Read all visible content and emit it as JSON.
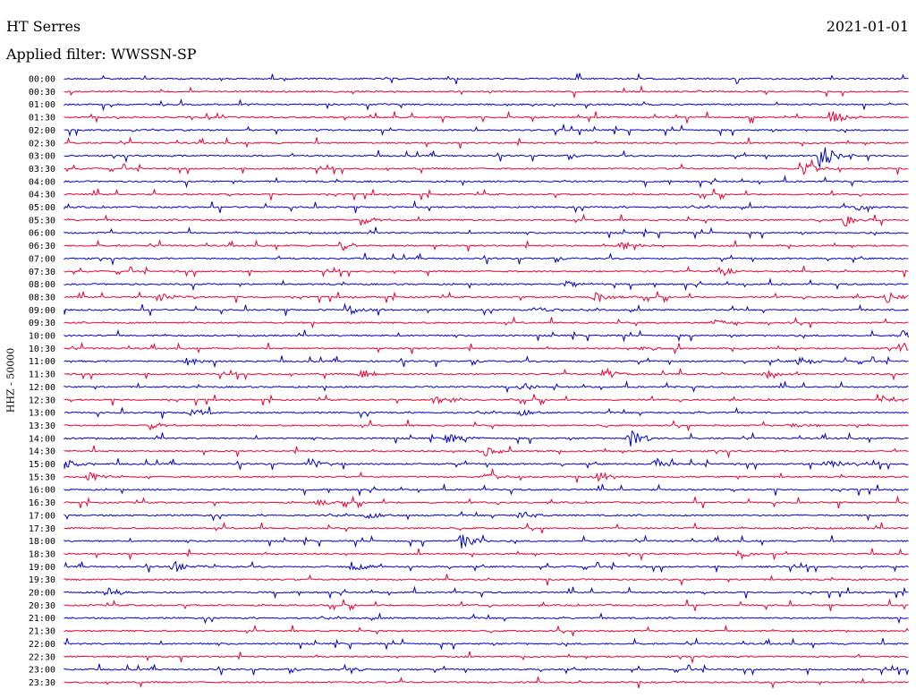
{
  "header": {
    "station": "HT Serres",
    "date": "2021-01-01",
    "filter": "Applied filter: WWSSN-SP"
  },
  "chart_data": {
    "type": "line",
    "title": "HT Serres",
    "subtitle": "Applied filter: WWSSN-SP",
    "ylabel": "HHZ - 50000",
    "xlabel": "",
    "colors": [
      "#0000cc",
      "#ee0033"
    ],
    "grid": false,
    "legend": "none",
    "rows": [
      "00:00",
      "00:30",
      "01:00",
      "01:30",
      "02:00",
      "02:30",
      "03:00",
      "03:30",
      "04:00",
      "04:30",
      "05:00",
      "05:30",
      "06:00",
      "06:30",
      "07:00",
      "07:30",
      "08:00",
      "08:30",
      "09:00",
      "09:30",
      "10:00",
      "10:30",
      "11:00",
      "11:30",
      "12:00",
      "12:30",
      "13:00",
      "13:30",
      "14:00",
      "14:30",
      "15:00",
      "15:30",
      "16:00",
      "16:30",
      "17:00",
      "17:30",
      "18:00",
      "18:30",
      "19:00",
      "19:30",
      "20:00",
      "20:30",
      "21:00",
      "21:30",
      "22:00",
      "22:30",
      "23:00",
      "23:30"
    ],
    "events": [
      {
        "row": "03:00",
        "t": 0.895,
        "amp": 1.0
      },
      {
        "row": "03:30",
        "t": 0.875,
        "amp": 0.6
      },
      {
        "row": "01:30",
        "t": 0.905,
        "amp": 0.7
      },
      {
        "row": "05:30",
        "t": 0.925,
        "amp": 0.55
      },
      {
        "row": "05:00",
        "t": 0.94,
        "amp": 0.35
      },
      {
        "row": "05:30",
        "t": 0.355,
        "amp": 0.3
      },
      {
        "row": "06:30",
        "t": 0.33,
        "amp": 0.35
      },
      {
        "row": "06:30",
        "t": 0.66,
        "amp": 0.4
      },
      {
        "row": "07:30",
        "t": 0.775,
        "amp": 0.5
      },
      {
        "row": "08:00",
        "t": 0.595,
        "amp": 0.4
      },
      {
        "row": "08:30",
        "t": 0.11,
        "amp": 0.45
      },
      {
        "row": "08:30",
        "t": 0.63,
        "amp": 0.45
      },
      {
        "row": "08:30",
        "t": 0.975,
        "amp": 0.45
      },
      {
        "row": "09:00",
        "t": 0.34,
        "amp": 0.35
      },
      {
        "row": "09:00",
        "t": 0.56,
        "amp": 0.35
      },
      {
        "row": "09:30",
        "t": 0.77,
        "amp": 0.35
      },
      {
        "row": "10:00",
        "t": 0.99,
        "amp": 0.55
      },
      {
        "row": "10:30",
        "t": 0.99,
        "amp": 0.55
      },
      {
        "row": "10:30",
        "t": 0.68,
        "amp": 0.35
      },
      {
        "row": "11:00",
        "t": 0.145,
        "amp": 0.45
      },
      {
        "row": "11:00",
        "t": 0.87,
        "amp": 0.4
      },
      {
        "row": "11:30",
        "t": 0.35,
        "amp": 0.45
      },
      {
        "row": "11:30",
        "t": 0.64,
        "amp": 0.5
      },
      {
        "row": "11:30",
        "t": 0.83,
        "amp": 0.35
      },
      {
        "row": "12:00",
        "t": 0.54,
        "amp": 0.35
      },
      {
        "row": "12:30",
        "t": 0.44,
        "amp": 0.45
      },
      {
        "row": "12:30",
        "t": 0.97,
        "amp": 0.35
      },
      {
        "row": "13:00",
        "t": 0.15,
        "amp": 0.3
      },
      {
        "row": "13:00",
        "t": 0.54,
        "amp": 0.3
      },
      {
        "row": "13:30",
        "t": 0.1,
        "amp": 0.35
      },
      {
        "row": "13:30",
        "t": 0.86,
        "amp": 0.3
      },
      {
        "row": "14:00",
        "t": 0.455,
        "amp": 0.5
      },
      {
        "row": "14:00",
        "t": 0.67,
        "amp": 0.7
      },
      {
        "row": "14:30",
        "t": 0.495,
        "amp": 0.5
      },
      {
        "row": "15:00",
        "t": 0.0,
        "amp": 0.6
      },
      {
        "row": "15:00",
        "t": 0.29,
        "amp": 0.45
      },
      {
        "row": "15:00",
        "t": 0.7,
        "amp": 0.45
      },
      {
        "row": "15:00",
        "t": 0.9,
        "amp": 0.5
      },
      {
        "row": "15:30",
        "t": 0.03,
        "amp": 0.45
      },
      {
        "row": "15:30",
        "t": 0.63,
        "amp": 0.45
      },
      {
        "row": "15:30",
        "t": 0.5,
        "amp": 0.35
      },
      {
        "row": "16:30",
        "t": 0.3,
        "amp": 0.25
      },
      {
        "row": "17:00",
        "t": 0.54,
        "amp": 0.4
      },
      {
        "row": "17:00",
        "t": 0.36,
        "amp": 0.3
      },
      {
        "row": "18:00",
        "t": 0.47,
        "amp": 0.6
      },
      {
        "row": "18:30",
        "t": 0.8,
        "amp": 0.45
      },
      {
        "row": "19:00",
        "t": 0.13,
        "amp": 0.45
      },
      {
        "row": "19:00",
        "t": 0.34,
        "amp": 0.45
      },
      {
        "row": "20:00",
        "t": 0.05,
        "amp": 0.45
      },
      {
        "row": "23:00",
        "t": 0.34,
        "amp": 0.25
      }
    ]
  }
}
